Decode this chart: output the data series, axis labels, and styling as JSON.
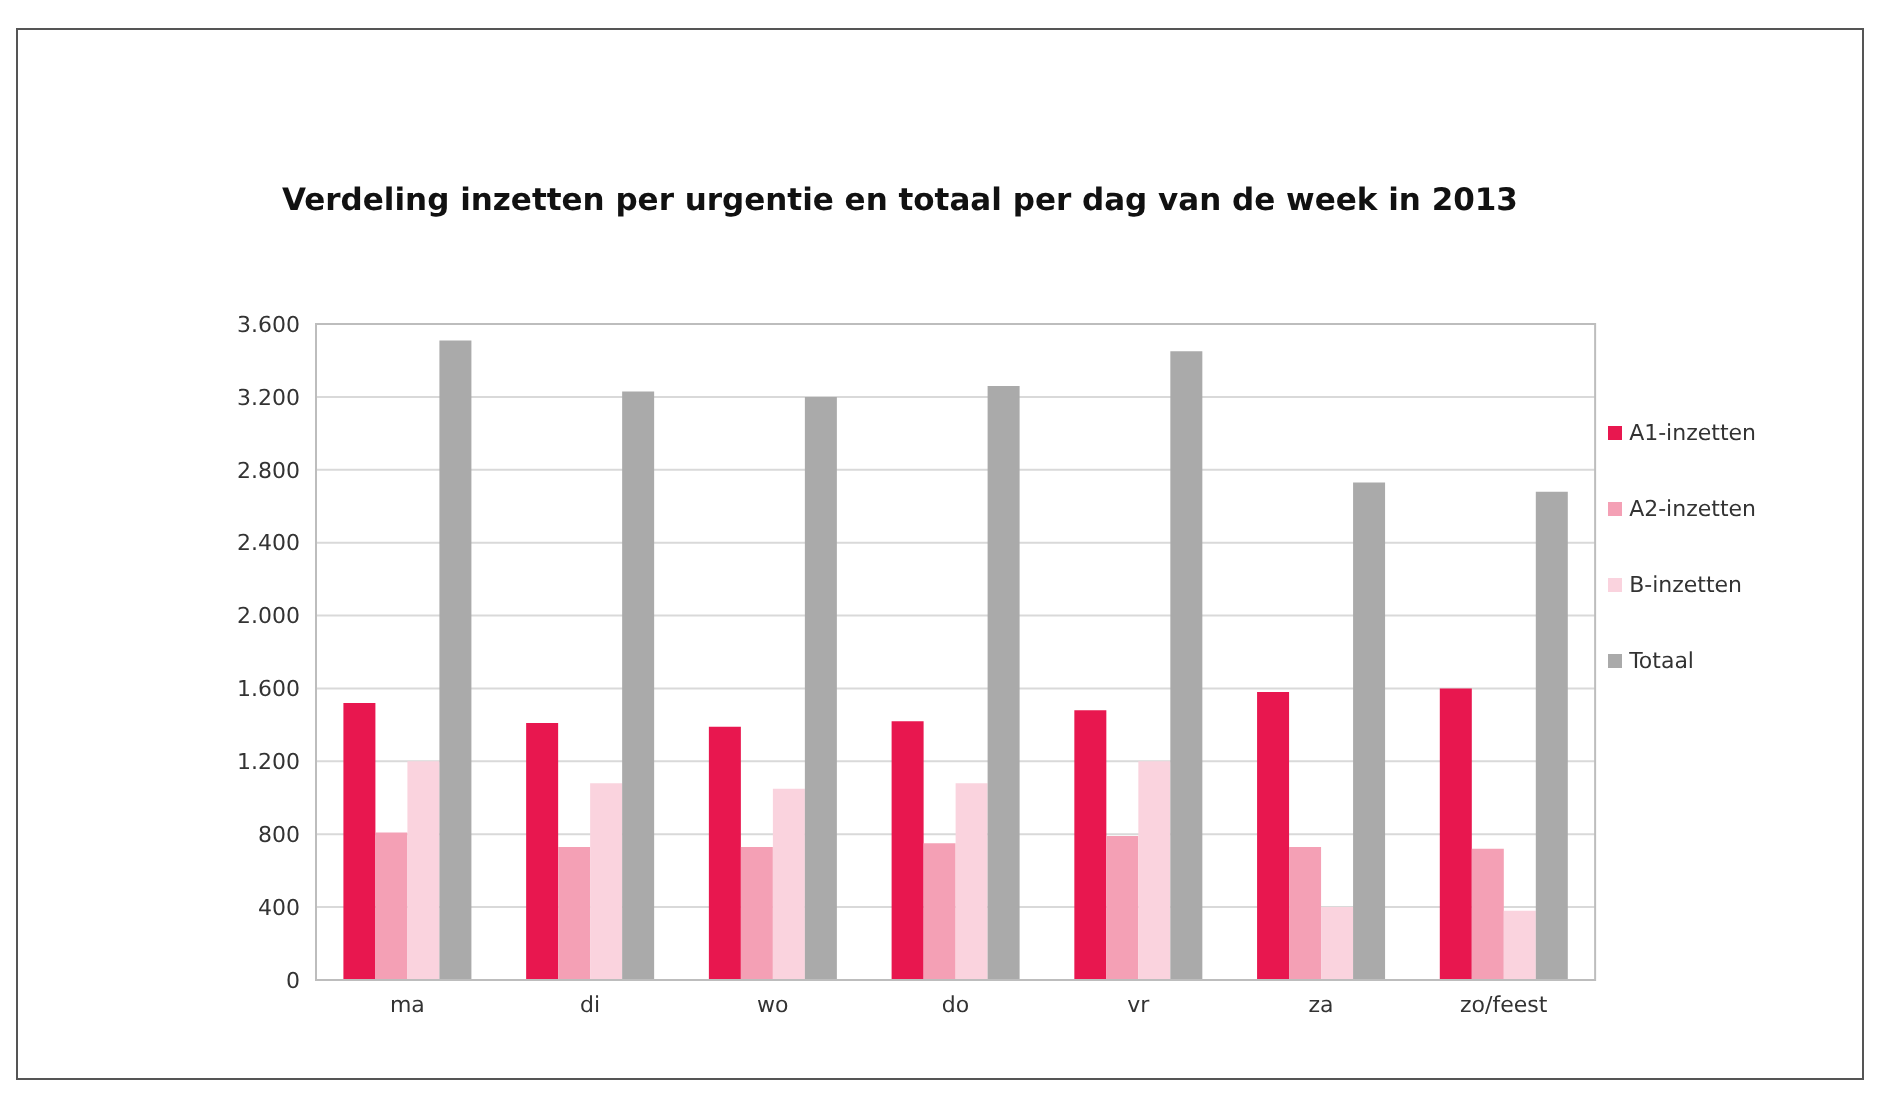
{
  "chart_data": {
    "type": "bar",
    "title": "Verdeling inzetten per urgentie en totaal per dag van de week in 2013",
    "categories": [
      "ma",
      "di",
      "wo",
      "do",
      "vr",
      "za",
      "zo/feest"
    ],
    "series": [
      {
        "name": "A1-inzetten",
        "color": "#e8174f",
        "values": [
          1520,
          1410,
          1390,
          1420,
          1480,
          1580,
          1600
        ]
      },
      {
        "name": "A2-inzetten",
        "color": "#f4a0b5",
        "values": [
          810,
          730,
          730,
          750,
          790,
          730,
          720
        ]
      },
      {
        "name": "B-inzetten",
        "color": "#fad3de",
        "values": [
          1200,
          1080,
          1050,
          1080,
          1200,
          400,
          380
        ]
      },
      {
        "name": "Totaal",
        "color": "#aaaaaa",
        "values": [
          3510,
          3230,
          3200,
          3260,
          3450,
          2730,
          2680
        ]
      }
    ],
    "ylim": [
      0,
      3600
    ],
    "yticks": [
      0,
      400,
      800,
      {
        "value": 1200,
        "label": "1.200"
      },
      {
        "value": 1600,
        "label": "1.600"
      },
      {
        "value": 2000,
        "label": "2.000"
      },
      {
        "value": 2400,
        "label": "2.400"
      },
      {
        "value": 2800,
        "label": "2.800"
      },
      {
        "value": 3200,
        "label": "3.200"
      },
      {
        "value": 3600,
        "label": "3.600"
      }
    ],
    "grid": "y",
    "legend": "right"
  }
}
